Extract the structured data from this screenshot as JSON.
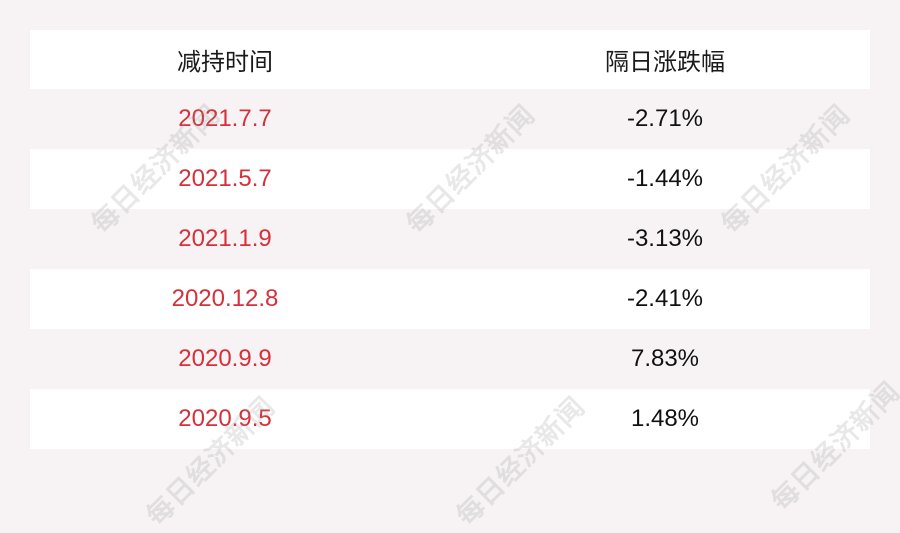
{
  "chart_data": {
    "type": "table",
    "columns": [
      "减持时间",
      "隔日涨跌幅"
    ],
    "rows": [
      [
        "2021.7.7",
        "-2.71%"
      ],
      [
        "2021.5.7",
        "-1.44%"
      ],
      [
        "2021.1.9",
        "-3.13%"
      ],
      [
        "2020.12.8",
        "-2.41%"
      ],
      [
        "2020.9.9",
        "7.83%"
      ],
      [
        "2020.9.5",
        "1.48%"
      ]
    ]
  },
  "colors": {
    "date_text": "#d6303a",
    "value_text": "#111111",
    "background": "#f7f3f4",
    "row_alt": "#ffffff"
  },
  "watermark": "每日经济新闻"
}
